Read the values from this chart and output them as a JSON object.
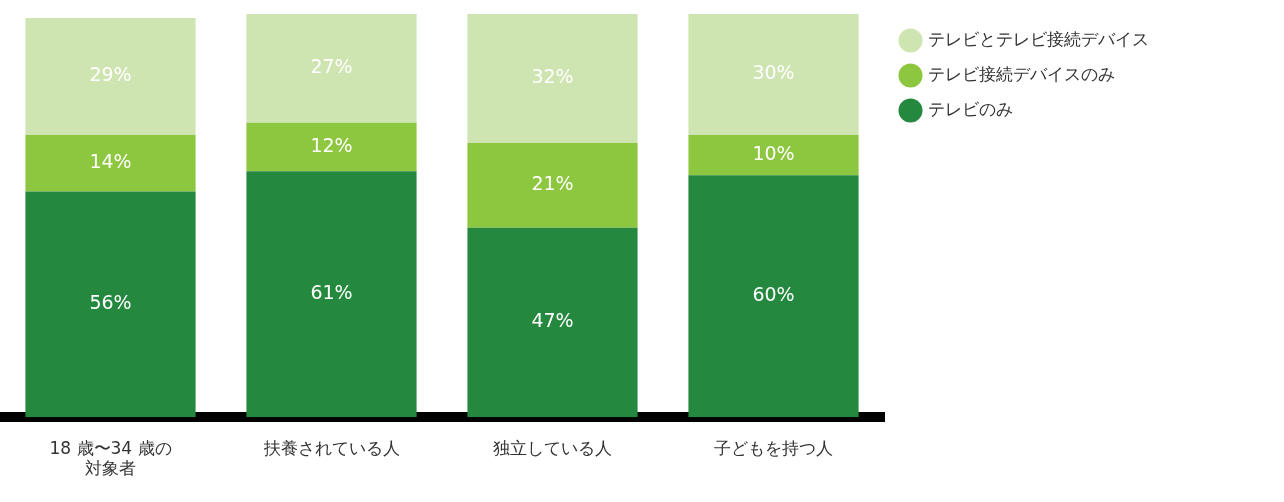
{
  "chart_data": {
    "type": "bar",
    "stacked": true,
    "categories": [
      "18 歳〜34 歳の対象者",
      "扶養されている人",
      "独立している人",
      "子どもを持つ人"
    ],
    "series": [
      {
        "name": "テレビのみ",
        "color": "#25883f",
        "values": [
          56,
          61,
          47,
          60
        ],
        "value_labels": [
          "56%",
          "61%",
          "47%",
          "60%"
        ]
      },
      {
        "name": "テレビ接続デバイスのみ",
        "color": "#8dc63f",
        "values": [
          14,
          12,
          21,
          10
        ],
        "value_labels": [
          "14%",
          "12%",
          "21%",
          "10%"
        ]
      },
      {
        "name": "テレビとテレビ接続デバイス",
        "color": "#cee5b1",
        "values": [
          29,
          27,
          32,
          30
        ],
        "value_labels": [
          "29%",
          "27%",
          "32%",
          "30%"
        ]
      }
    ],
    "legend": "top right",
    "grid": false,
    "tick_labels": "x"
  }
}
